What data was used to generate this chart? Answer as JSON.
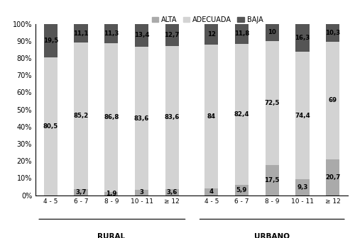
{
  "categories": [
    "4 - 5",
    "6 - 7",
    "8 - 9",
    "10 - 11",
    "≥ 12",
    "4 - 5",
    "6 - 7",
    "8 - 9",
    "10 - 11",
    "≥ 12"
  ],
  "group_labels": [
    "RURAL",
    "URBANO"
  ],
  "alta": [
    0.0,
    3.7,
    1.9,
    3.0,
    3.6,
    4.0,
    5.9,
    17.5,
    9.3,
    20.7
  ],
  "adecuada": [
    80.5,
    85.2,
    86.8,
    83.6,
    83.6,
    84.0,
    82.4,
    72.5,
    74.4,
    69.0
  ],
  "baja": [
    19.5,
    11.1,
    11.3,
    13.4,
    12.7,
    12.0,
    11.8,
    10.0,
    16.3,
    10.3
  ],
  "alta_labels": [
    "",
    "3,7",
    "1,9",
    "3",
    "3,6",
    "4",
    "5,9",
    "17,5",
    "9,3",
    "20,7"
  ],
  "adecuada_labels": [
    "80,5",
    "85,2",
    "86,8",
    "83,6",
    "83,6",
    "84",
    "82,4",
    "72,5",
    "74,4",
    "69"
  ],
  "baja_labels": [
    "19,5",
    "11,1",
    "11,3",
    "13,4",
    "12,7",
    "12",
    "11,8",
    "10",
    "16,3",
    "10,3"
  ],
  "color_alta": "#aaaaaa",
  "color_adecuada": "#d3d3d3",
  "color_baja": "#555555",
  "legend_labels": [
    "ALTA",
    "ADECUADA",
    "BAJA"
  ],
  "ylim": [
    0,
    100
  ],
  "yticks": [
    0,
    10,
    20,
    30,
    40,
    50,
    60,
    70,
    80,
    90,
    100
  ],
  "ytick_labels": [
    "0%",
    "10%",
    "20%",
    "30%",
    "40%",
    "50%",
    "60%",
    "70%",
    "80%",
    "90%",
    "100%"
  ],
  "bar_width": 0.45,
  "figsize": [
    5.0,
    3.36
  ],
  "dpi": 100
}
